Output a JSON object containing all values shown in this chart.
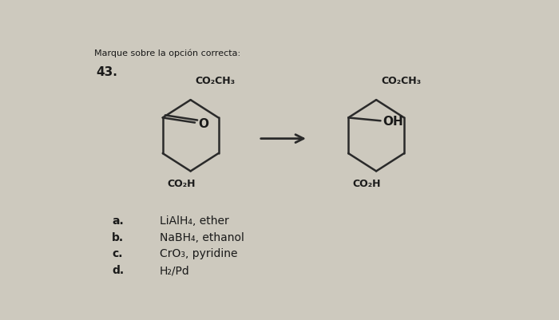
{
  "title": "Marque sobre la opción correcta:",
  "question_num": "43.",
  "bg_color": "#cdc9be",
  "text_color": "#1a1a1a",
  "bond_color": "#2a2a2a",
  "options": [
    {
      "label": "a.",
      "text": "LiAlH₄, ether"
    },
    {
      "label": "b.",
      "text": "NaBH₄, ethanol"
    },
    {
      "label": "c.",
      "text": "CrO₃, pyridine"
    },
    {
      "label": "d.",
      "text": "H₂/Pd"
    }
  ],
  "left_top_label": "CO₂CH₃",
  "left_bottom_label": "CO₂H",
  "left_ketone": "O",
  "right_top_label": "CO₂CH₃",
  "right_bottom_label": "CO₂H",
  "right_oh": "OH"
}
